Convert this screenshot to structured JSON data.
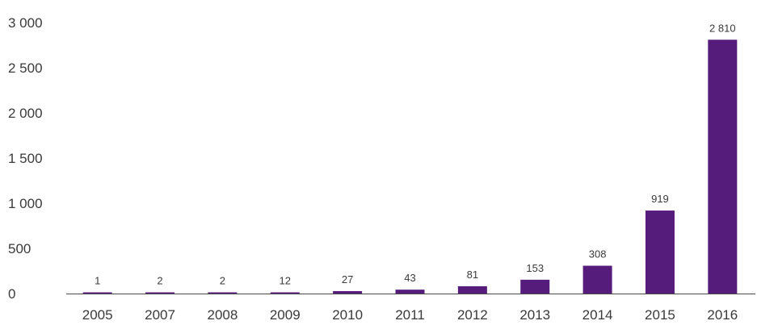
{
  "chart_data": {
    "type": "bar",
    "title": "",
    "xlabel": "",
    "ylabel": "",
    "categories": [
      "2005",
      "2007",
      "2008",
      "2009",
      "2010",
      "2011",
      "2012",
      "2013",
      "2014",
      "2015",
      "2016"
    ],
    "values": [
      1,
      2,
      2,
      12,
      27,
      43,
      81,
      153,
      308,
      919,
      2810
    ],
    "data_labels": [
      "1",
      "2",
      "2",
      "12",
      "27",
      "43",
      "81",
      "153",
      "308",
      "919",
      "2 810"
    ],
    "ylim": [
      0,
      3000
    ],
    "yticks": [
      0,
      500,
      1000,
      1500,
      2000,
      2500,
      3000
    ],
    "ytick_labels": [
      "0",
      "500",
      "1 000",
      "1 500",
      "2 000",
      "2 500",
      "3 000"
    ],
    "grid": false,
    "legend": "none",
    "bar_color": "#561c7b",
    "text_color": "#3a3a3a",
    "axis_color": "#4a4a4a"
  }
}
